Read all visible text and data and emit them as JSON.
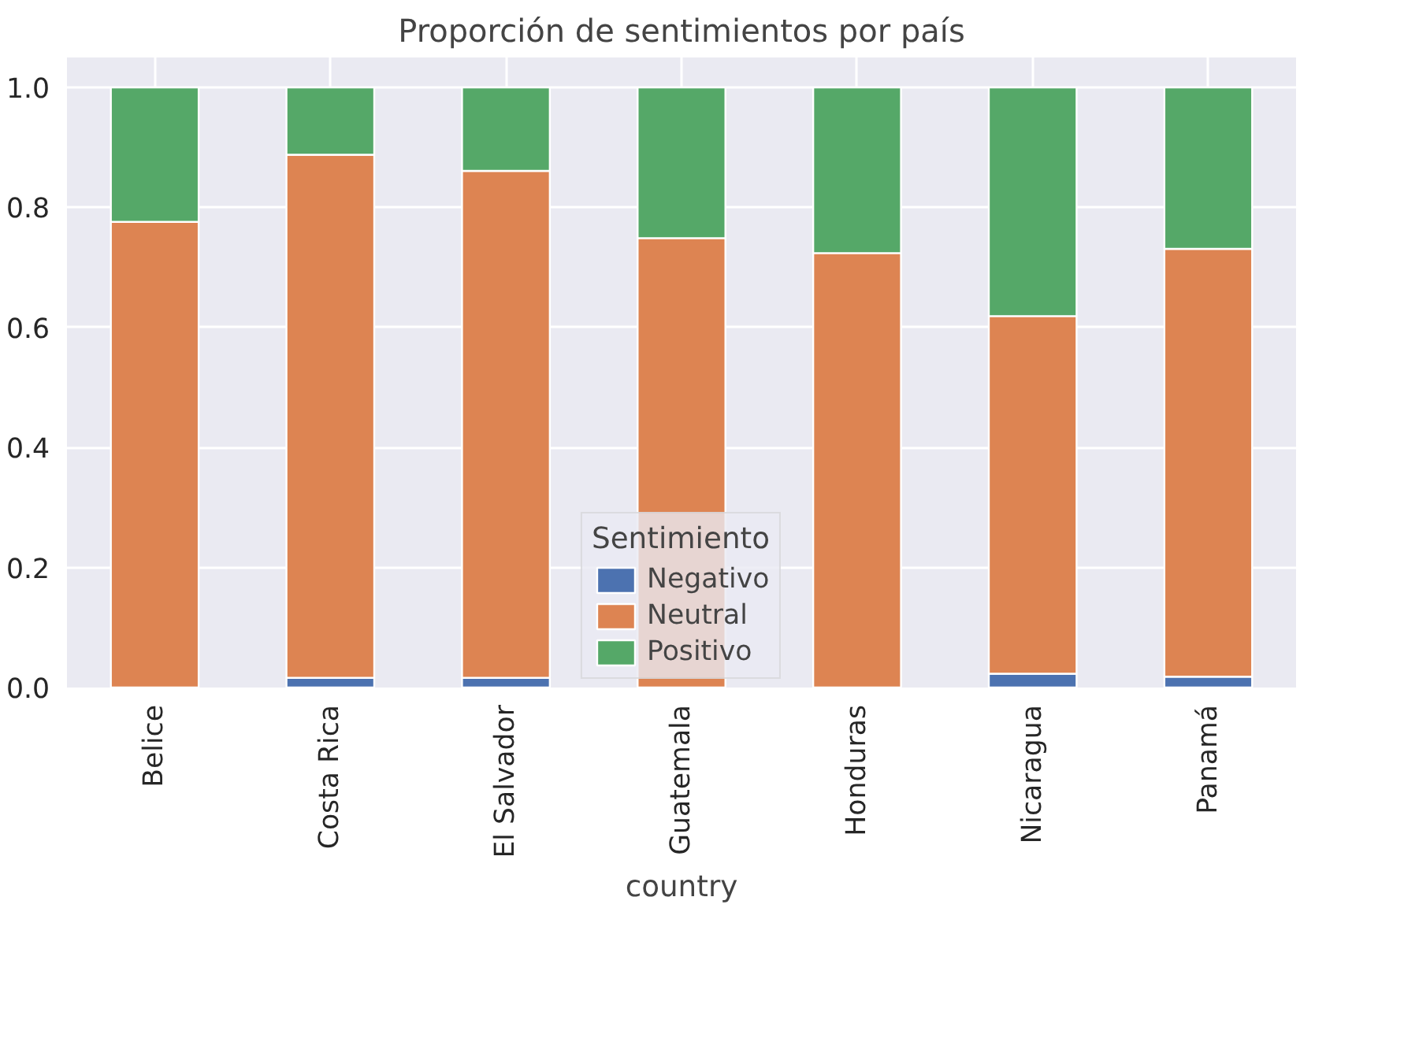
{
  "chart_data": {
    "type": "bar",
    "title": "Proporción de sentimientos por país",
    "xlabel": "country",
    "legend_title": "Sentimiento",
    "stacked": true,
    "grid": true,
    "legend": "bottom",
    "categories": [
      "Belice",
      "Costa Rica",
      "El Salvador",
      "Guatemala",
      "Honduras",
      "Nicaragua",
      "Panamá"
    ],
    "ylim": [
      0,
      1.05
    ],
    "yticks": [
      {
        "value": 0,
        "label": "0.0"
      },
      {
        "value": 0.2,
        "label": "0.2"
      },
      {
        "value": 0.4,
        "label": "0.4"
      },
      {
        "value": 0.6,
        "label": "0.6"
      },
      {
        "value": 0.8,
        "label": "0.8"
      },
      {
        "value": 1,
        "label": "1.0"
      }
    ],
    "series": [
      {
        "name": "Negativo",
        "color": "#4c72b0",
        "values": [
          0,
          0.016,
          0.016,
          null,
          0,
          0.023,
          0.018
        ]
      },
      {
        "name": "Neutral",
        "color": "#dd8452",
        "values": [
          0.776,
          0.872,
          0.845,
          0.749,
          0.724,
          0.596,
          0.713
        ]
      },
      {
        "name": "Positivo",
        "color": "#55a868",
        "values": [
          0.224,
          0.112,
          0.139,
          0.251,
          0.276,
          0.381,
          0.269
        ]
      }
    ]
  }
}
